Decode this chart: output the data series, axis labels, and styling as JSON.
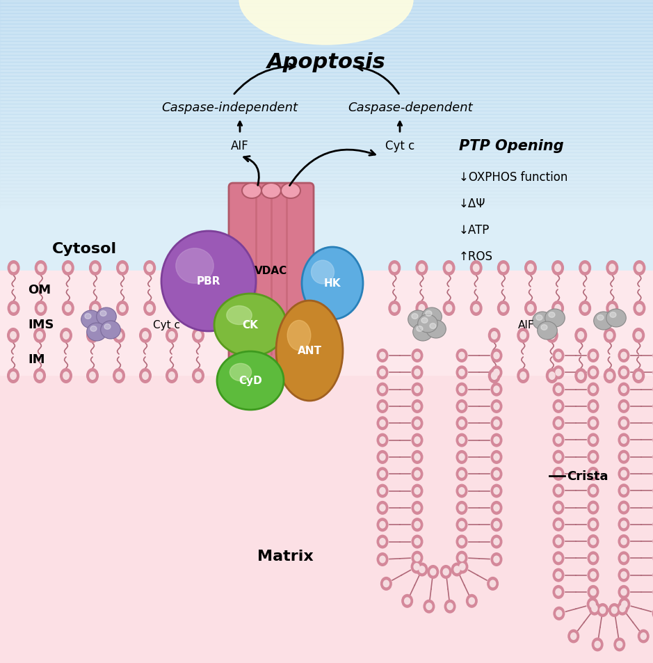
{
  "title_apoptosis": "Apoptosis",
  "label_caspase_indep": "Caspase-independent",
  "label_caspase_dep": "Caspase-dependent",
  "label_AIF_top": "AIF",
  "label_Cytc_top": "Cyt c",
  "label_PTP": "PTP Opening",
  "ptp_effects": [
    "↓OXPHOS function",
    "↓ΔΨ",
    "↓ATP",
    "↑ROS"
  ],
  "label_OM": "OM",
  "label_IMS": "IMS",
  "label_IM": "IM",
  "label_Cytosol": "Cytosol",
  "label_Matrix": "Matrix",
  "label_Crista": "Crista",
  "label_Cytc_ims": "Cyt c",
  "label_AIF_ims": "AIF",
  "VDAC_color": "#d9788e",
  "VDAC_highlight": "#f0a0b2",
  "PBR_color": "#9b59b6",
  "PBR_highlight": "#c39bd3",
  "HK_color": "#5dade2",
  "HK_highlight": "#aed6f1",
  "CK_color": "#7dbb3c",
  "CK_highlight": "#c5e8a0",
  "CyD_color": "#5dbb3c",
  "CyD_highlight": "#c5e8a0",
  "ANT_color": "#c8862a",
  "ANT_highlight": "#f0c070",
  "mem_head": "#d4889a",
  "mem_head_inner": "#f5dce0",
  "mem_tail": "#b06878",
  "bg_cytosol": "#dceef8",
  "bg_ims": "#fce8ec",
  "bg_matrix": "#fce0e5"
}
